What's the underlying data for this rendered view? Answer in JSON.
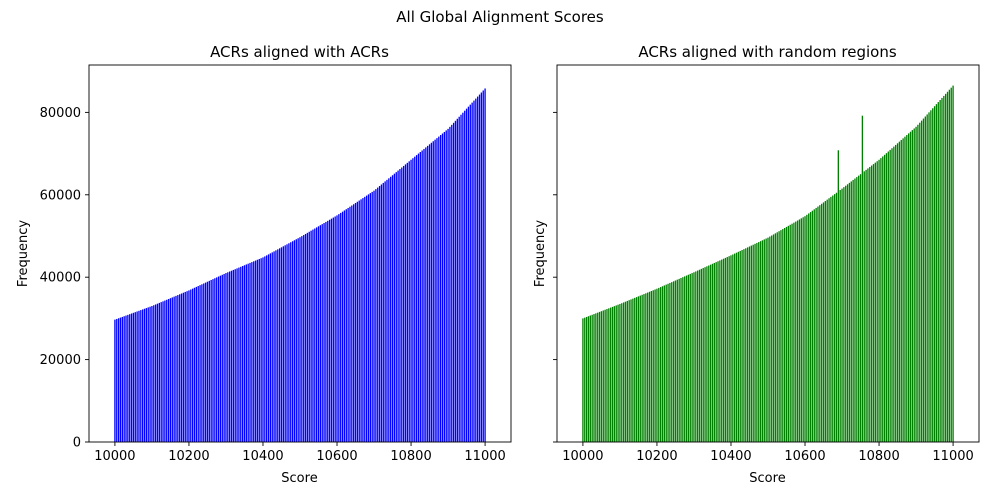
{
  "figure": {
    "suptitle": "All Global Alignment Scores"
  },
  "chart_data": [
    {
      "type": "bar",
      "title": "ACRs aligned with ACRs",
      "xlabel": "Score",
      "ylabel": "Frequency",
      "xlim": [
        9930,
        11070
      ],
      "ylim": [
        0,
        91500
      ],
      "xticks": [
        10000,
        10200,
        10400,
        10600,
        10800,
        11000
      ],
      "yticks": [
        0,
        20000,
        40000,
        60000,
        80000
      ],
      "bar_color": "#0000ff",
      "bin_step": 5,
      "anchors": [
        [
          10000,
          29700
        ],
        [
          10100,
          33000
        ],
        [
          10200,
          36800
        ],
        [
          10300,
          41000
        ],
        [
          10400,
          44800
        ],
        [
          10500,
          49700
        ],
        [
          10600,
          55000
        ],
        [
          10700,
          61000
        ],
        [
          10800,
          68500
        ],
        [
          10900,
          76000
        ],
        [
          11000,
          85800
        ]
      ],
      "spikes": []
    },
    {
      "type": "bar",
      "title": "ACRs aligned with random regions",
      "xlabel": "Score",
      "ylabel": "Frequency",
      "xlim": [
        9930,
        11070
      ],
      "ylim": [
        0,
        91500
      ],
      "xticks": [
        10000,
        10200,
        10400,
        10600,
        10800,
        11000
      ],
      "yticks": [
        0,
        20000,
        40000,
        60000,
        80000
      ],
      "ytick_labels_shown": false,
      "bar_color": "#008000",
      "bin_step": 5,
      "anchors": [
        [
          10000,
          30000
        ],
        [
          10100,
          33500
        ],
        [
          10200,
          37200
        ],
        [
          10300,
          41200
        ],
        [
          10400,
          45300
        ],
        [
          10500,
          49600
        ],
        [
          10600,
          54800
        ],
        [
          10700,
          61500
        ],
        [
          10800,
          68500
        ],
        [
          10900,
          76500
        ],
        [
          11000,
          86500
        ]
      ],
      "spikes": [
        [
          10690,
          70800
        ],
        [
          10755,
          79200
        ]
      ]
    }
  ]
}
